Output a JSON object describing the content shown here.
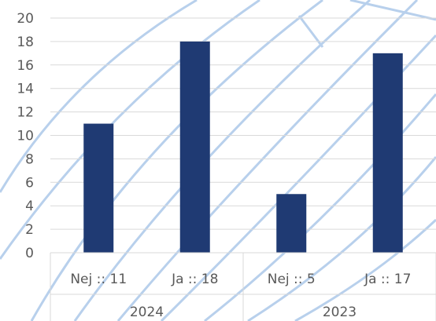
{
  "chart_data": {
    "type": "bar",
    "ylim": [
      0,
      20
    ],
    "y_tick_step": 2,
    "grid": true,
    "groups": [
      {
        "name": "2024",
        "categories": [
          "Nej :: 11",
          "Ja :: 18"
        ]
      },
      {
        "name": "2023",
        "categories": [
          "Nej :: 5",
          "Ja :: 17"
        ]
      }
    ],
    "series": [
      {
        "values": [
          11,
          18,
          5,
          17
        ]
      }
    ],
    "colors": {
      "bar": "#1f3a73",
      "grid": "#d9d9d9",
      "text": "#595959",
      "decor": "#b8d0ec"
    }
  }
}
